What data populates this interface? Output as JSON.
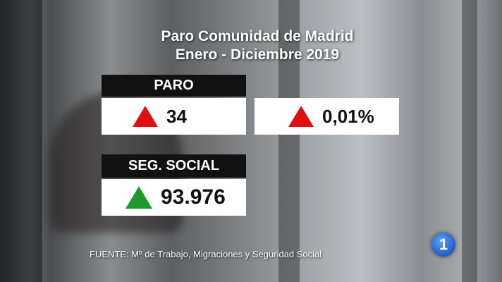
{
  "title": {
    "line1": "Paro Comunidad de Madrid",
    "line2": "Enero - Diciembre 2019"
  },
  "paro": {
    "label": "PARO",
    "value": "34",
    "percent": "0,01%"
  },
  "seg_social": {
    "label": "SEG. SOCIAL",
    "value": "93.976"
  },
  "source": "FUENTE: Mº de Trabajo, Migraciones y Seguridad Social",
  "logo": "1"
}
